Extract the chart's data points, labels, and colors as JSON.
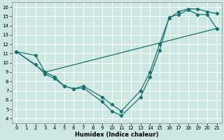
{
  "xlabel": "Humidex (Indice chaleur)",
  "xlim": [
    -0.5,
    21.5
  ],
  "ylim": [
    3.5,
    16.5
  ],
  "xticks": [
    0,
    1,
    2,
    3,
    4,
    5,
    6,
    7,
    8,
    9,
    10,
    11,
    12,
    13,
    14,
    15,
    16,
    17,
    18,
    19,
    20,
    21
  ],
  "yticks": [
    4,
    5,
    6,
    7,
    8,
    9,
    10,
    11,
    12,
    13,
    14,
    15,
    16
  ],
  "bg_color": "#cce8e0",
  "grid_color": "#ffffff",
  "line_color": "#1a7070",
  "line1_x": [
    0,
    2,
    3,
    4,
    5,
    6,
    7,
    9,
    10,
    11,
    13,
    14,
    15,
    16,
    17,
    18,
    19,
    20,
    21
  ],
  "line1_y": [
    11.2,
    10.8,
    9.0,
    8.5,
    7.5,
    7.2,
    7.3,
    5.8,
    4.8,
    4.3,
    6.3,
    8.5,
    11.3,
    14.9,
    15.2,
    15.7,
    15.2,
    15.2,
    13.7
  ],
  "line2_x": [
    0,
    2,
    3,
    4,
    5,
    6,
    7,
    9,
    10,
    11,
    13,
    14,
    15,
    16,
    17,
    18,
    19,
    20,
    21
  ],
  "line2_y": [
    11.2,
    9.8,
    8.8,
    8.3,
    7.5,
    7.2,
    7.5,
    6.3,
    5.5,
    4.8,
    7.0,
    9.0,
    12.0,
    14.8,
    15.5,
    15.8,
    15.8,
    15.5,
    15.3
  ],
  "line3_x": [
    0,
    3,
    21
  ],
  "line3_y": [
    11.2,
    9.0,
    13.7
  ]
}
